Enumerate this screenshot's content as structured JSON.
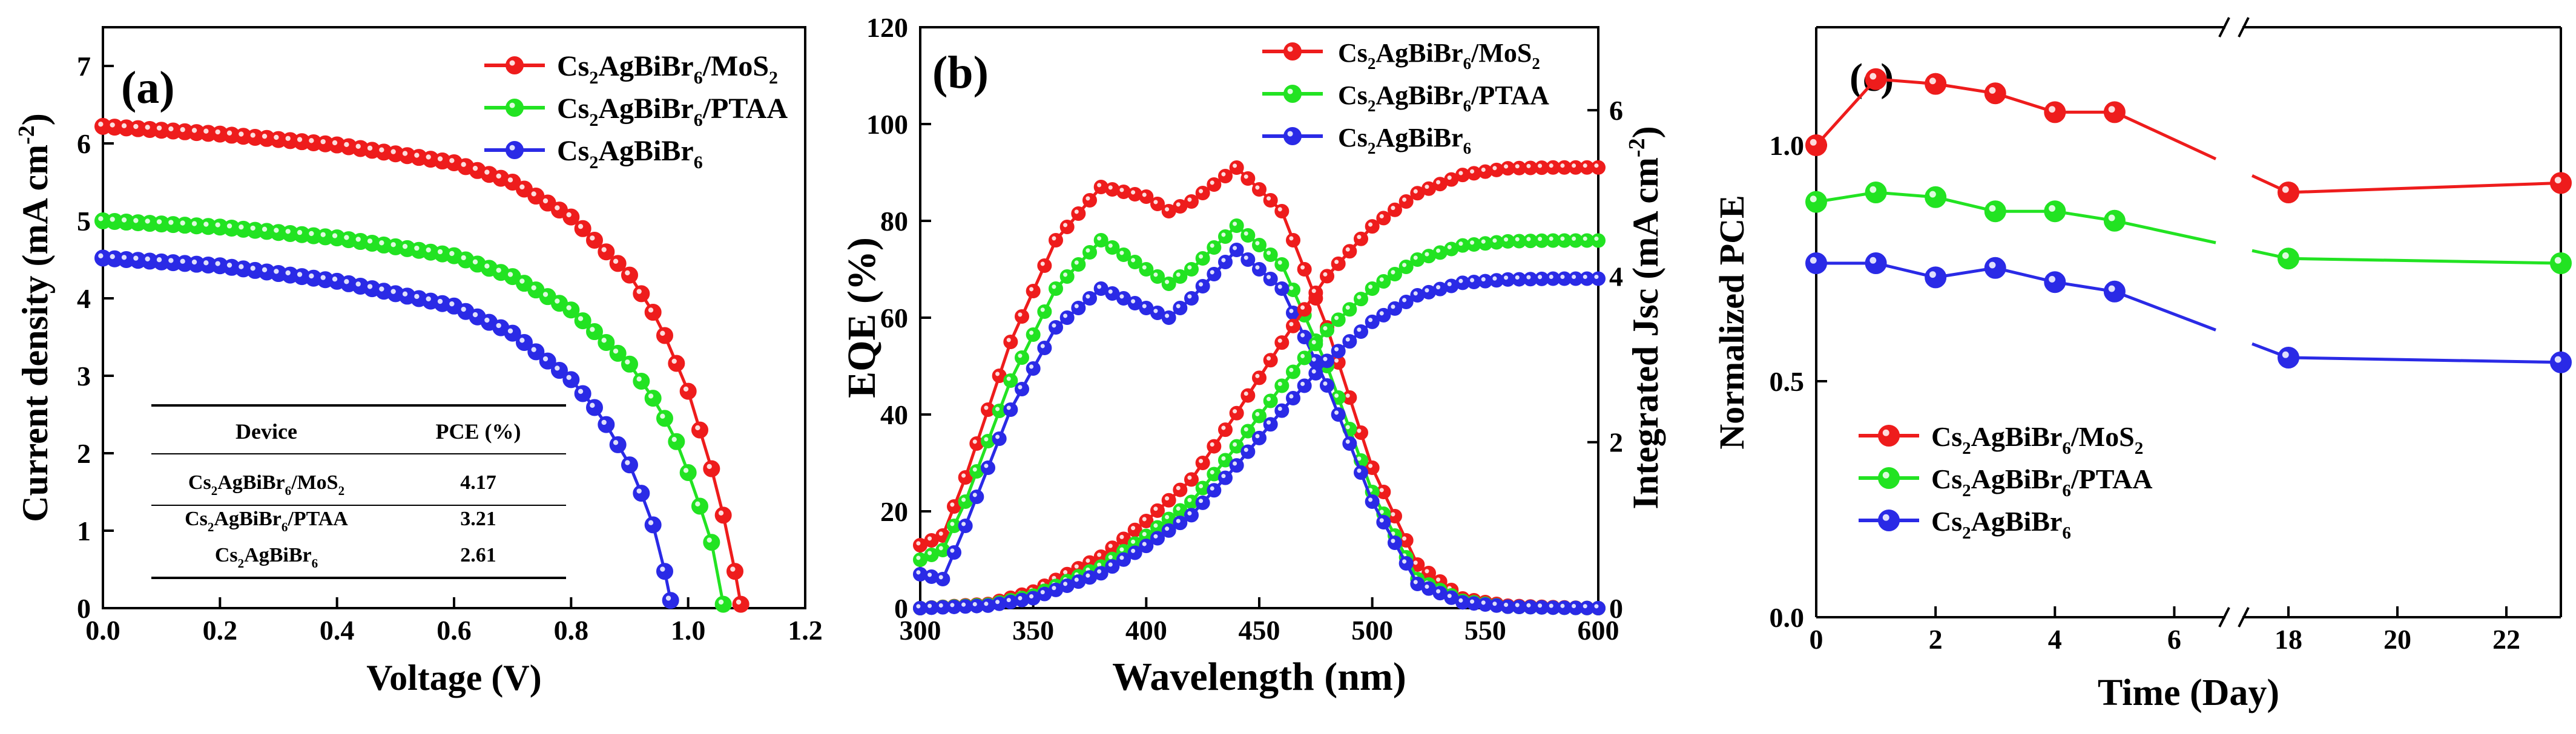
{
  "legend": {
    "mos2": {
      "base": "Cs",
      "s1": "2",
      "mid": "AgBiBr",
      "s2": "6",
      "mid2": "/MoS",
      "s3": "2",
      "tail": ""
    },
    "ptaa": {
      "base": "Cs",
      "s1": "2",
      "mid": "AgBiBr",
      "s2": "6",
      "mid2": "/PTAA",
      "s3": "",
      "tail": ""
    },
    "bare": {
      "base": "Cs",
      "s1": "2",
      "mid": "AgBiBr",
      "s2": "6",
      "mid2": "",
      "s3": "",
      "tail": ""
    }
  },
  "colors": {
    "mos2": "#ee1c1c",
    "ptaa": "#22e322",
    "bare": "#2a2ae6",
    "axis": "#000000"
  },
  "chart_data": [
    {
      "type": "line",
      "panel_label": "(a)",
      "title": "",
      "xlabel": "Voltage (V)",
      "ylabel": "Current density (mA cm",
      "ylabel_sup": "-2",
      "ylabel_close": ")",
      "xlim": [
        0,
        1.2
      ],
      "ylim": [
        0,
        7.5
      ],
      "xticks": [
        0.0,
        0.2,
        0.4,
        0.6,
        0.8,
        1.0,
        1.2
      ],
      "xtick_labels": [
        "0.0",
        "0.2",
        "0.4",
        "0.6",
        "0.8",
        "1.0",
        "1.2"
      ],
      "yticks": [
        0,
        1,
        2,
        3,
        4,
        5,
        6,
        7
      ],
      "ytick_labels": [
        "0",
        "1",
        "2",
        "3",
        "4",
        "5",
        "6",
        "7"
      ],
      "legend_position": "top-right",
      "series": [
        {
          "name": "Cs2AgBiBr6/MoS2",
          "key": "mos2",
          "x": [
            0,
            0.2,
            0.4,
            0.6,
            0.7,
            0.8,
            0.9,
            0.95,
            1.0,
            1.04,
            1.07,
            1.09
          ],
          "values": [
            6.22,
            6.12,
            5.98,
            5.75,
            5.5,
            5.05,
            4.3,
            3.7,
            2.8,
            1.8,
            0.9,
            0.05
          ]
        },
        {
          "name": "Cs2AgBiBr6/PTAA",
          "key": "ptaa",
          "x": [
            0,
            0.2,
            0.4,
            0.6,
            0.7,
            0.8,
            0.9,
            0.95,
            0.98,
            1.01,
            1.04,
            1.06
          ],
          "values": [
            5.0,
            4.92,
            4.78,
            4.55,
            4.28,
            3.85,
            3.15,
            2.6,
            2.15,
            1.55,
            0.85,
            0.05
          ]
        },
        {
          "name": "Cs2AgBiBr6",
          "key": "bare",
          "x": [
            0,
            0.2,
            0.4,
            0.6,
            0.7,
            0.8,
            0.85,
            0.9,
            0.93,
            0.95,
            0.97
          ],
          "values": [
            4.52,
            4.42,
            4.22,
            3.9,
            3.55,
            2.95,
            2.5,
            1.85,
            1.3,
            0.85,
            0.1
          ]
        }
      ],
      "table": {
        "headers": [
          "Device",
          "PCE (%)"
        ],
        "rows": [
          {
            "device_key": "mos2",
            "pce": "4.17"
          },
          {
            "device_key": "ptaa",
            "pce": "3.21"
          },
          {
            "device_key": "bare",
            "pce": "2.61"
          }
        ]
      }
    },
    {
      "type": "line",
      "panel_label": "(b)",
      "title": "",
      "xlabel": "Wavelength (nm)",
      "ylabel": "EQE (%)",
      "y2label": "Integrated Jsc (mA cm",
      "y2label_sup": "-2",
      "y2label_close": ")",
      "xlim": [
        300,
        600
      ],
      "ylim": [
        0,
        120
      ],
      "y2lim": [
        0,
        7
      ],
      "xticks": [
        300,
        350,
        400,
        450,
        500,
        550,
        600
      ],
      "xtick_labels": [
        "300",
        "350",
        "400",
        "450",
        "500",
        "550",
        "600"
      ],
      "yticks": [
        0,
        20,
        40,
        60,
        80,
        100,
        120
      ],
      "ytick_labels": [
        "0",
        "20",
        "40",
        "60",
        "80",
        "100",
        "120"
      ],
      "y2ticks": [
        0,
        2,
        4,
        6
      ],
      "y2tick_labels": [
        "0",
        "2",
        "4",
        "6"
      ],
      "legend_position": "top-right",
      "series": [
        {
          "name": "Cs2AgBiBr6/MoS2 EQE",
          "key": "mos2",
          "axis": "left",
          "x": [
            300,
            310,
            320,
            340,
            360,
            380,
            400,
            410,
            420,
            440,
            460,
            480,
            500,
            520,
            540,
            560,
            580,
            600
          ],
          "values": [
            13,
            15,
            27,
            55,
            76,
            87,
            85,
            82,
            84,
            91,
            82,
            58,
            29,
            9,
            2,
            0.5,
            0.2,
            0
          ]
        },
        {
          "name": "Cs2AgBiBr6/PTAA EQE",
          "key": "ptaa",
          "axis": "left",
          "x": [
            300,
            310,
            320,
            340,
            360,
            380,
            400,
            410,
            420,
            440,
            460,
            480,
            500,
            520,
            540,
            560,
            580,
            600
          ],
          "values": [
            10,
            12,
            22,
            47,
            66,
            76,
            70,
            67,
            70,
            79,
            71,
            50,
            24,
            6,
            1.5,
            0.3,
            0.1,
            0
          ]
        },
        {
          "name": "Cs2AgBiBr6 EQE",
          "key": "bare",
          "axis": "left",
          "x": [
            300,
            310,
            320,
            340,
            360,
            380,
            400,
            410,
            420,
            440,
            460,
            480,
            500,
            520,
            540,
            560,
            580,
            600
          ],
          "values": [
            7,
            6,
            17,
            41,
            58,
            66,
            62,
            60,
            64,
            74,
            66,
            46,
            22,
            5,
            1.2,
            0.3,
            0.1,
            0
          ]
        },
        {
          "name": "Cs2AgBiBr6/MoS2 Jsc",
          "key": "mos2",
          "axis": "right",
          "x": [
            300,
            330,
            350,
            380,
            400,
            420,
            440,
            460,
            480,
            500,
            520,
            540,
            560,
            580,
            600
          ],
          "values": [
            0,
            0.05,
            0.2,
            0.62,
            1.05,
            1.55,
            2.35,
            3.2,
            4.0,
            4.6,
            5.0,
            5.22,
            5.3,
            5.31,
            5.31
          ]
        },
        {
          "name": "Cs2AgBiBr6/PTAA Jsc",
          "key": "ptaa",
          "axis": "right",
          "x": [
            300,
            330,
            350,
            380,
            400,
            420,
            440,
            460,
            480,
            500,
            520,
            540,
            560,
            580,
            600
          ],
          "values": [
            0,
            0.04,
            0.15,
            0.5,
            0.87,
            1.28,
            1.95,
            2.68,
            3.35,
            3.85,
            4.2,
            4.37,
            4.42,
            4.43,
            4.43
          ]
        },
        {
          "name": "Cs2AgBiBr6 Jsc",
          "key": "bare",
          "axis": "right",
          "x": [
            300,
            330,
            350,
            380,
            400,
            420,
            440,
            460,
            480,
            500,
            520,
            540,
            560,
            580,
            600
          ],
          "values": [
            0,
            0.03,
            0.12,
            0.42,
            0.75,
            1.12,
            1.72,
            2.38,
            2.98,
            3.45,
            3.77,
            3.92,
            3.96,
            3.97,
            3.97
          ]
        }
      ]
    },
    {
      "type": "line",
      "panel_label": "(c)",
      "title": "",
      "xlabel": "Time (Day)",
      "ylabel": "Normalized PCE",
      "xlim": [
        0,
        23
      ],
      "axis_break": {
        "from": 7,
        "to": 17
      },
      "ylim": [
        0,
        1.25
      ],
      "xticks": [
        0,
        2,
        4,
        6,
        18,
        20,
        22
      ],
      "xtick_labels": [
        "0",
        "2",
        "4",
        "6",
        "18",
        "20",
        "22"
      ],
      "yticks": [
        0.0,
        0.5,
        1.0
      ],
      "ytick_labels": [
        "0.0",
        "0.5",
        "1.0"
      ],
      "legend_position": "bottom-left",
      "series": [
        {
          "name": "Cs2AgBiBr6/MoS2",
          "key": "mos2",
          "x": [
            0,
            1,
            2,
            3,
            4,
            5,
            18,
            23
          ],
          "values": [
            1.0,
            1.14,
            1.13,
            1.11,
            1.07,
            1.07,
            0.9,
            0.92
          ]
        },
        {
          "name": "Cs2AgBiBr6/PTAA",
          "key": "ptaa",
          "x": [
            0,
            1,
            2,
            3,
            4,
            5,
            18,
            23
          ],
          "values": [
            0.88,
            0.9,
            0.89,
            0.86,
            0.86,
            0.84,
            0.76,
            0.75
          ]
        },
        {
          "name": "Cs2AgBiBr6",
          "key": "bare",
          "x": [
            0,
            1,
            2,
            3,
            4,
            5,
            18,
            23
          ],
          "values": [
            0.75,
            0.75,
            0.72,
            0.74,
            0.71,
            0.69,
            0.55,
            0.54
          ]
        }
      ]
    }
  ]
}
